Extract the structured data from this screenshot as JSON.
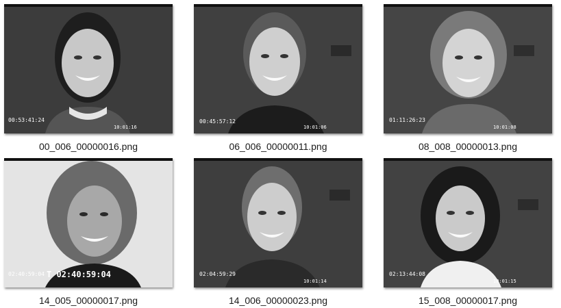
{
  "files": [
    {
      "name": "00_006_00000016.png",
      "timecode": "00:53:41:24",
      "counter": "10:01:16"
    },
    {
      "name": "06_006_00000011.png",
      "timecode": "00:45:57:12",
      "counter": "10:01:06"
    },
    {
      "name": "08_008_00000013.png",
      "timecode": "01:11:26:23",
      "counter": "10:01:08"
    },
    {
      "name": "14_005_00000017.png",
      "timecode": "02:40:59:04",
      "counter": "T 02:40:59:04"
    },
    {
      "name": "14_006_00000023.png",
      "timecode": "02:04:59:29",
      "counter": "10:01:14"
    },
    {
      "name": "15_008_00000017.png",
      "timecode": "02:13:44:08",
      "counter": "10:01:15"
    }
  ]
}
